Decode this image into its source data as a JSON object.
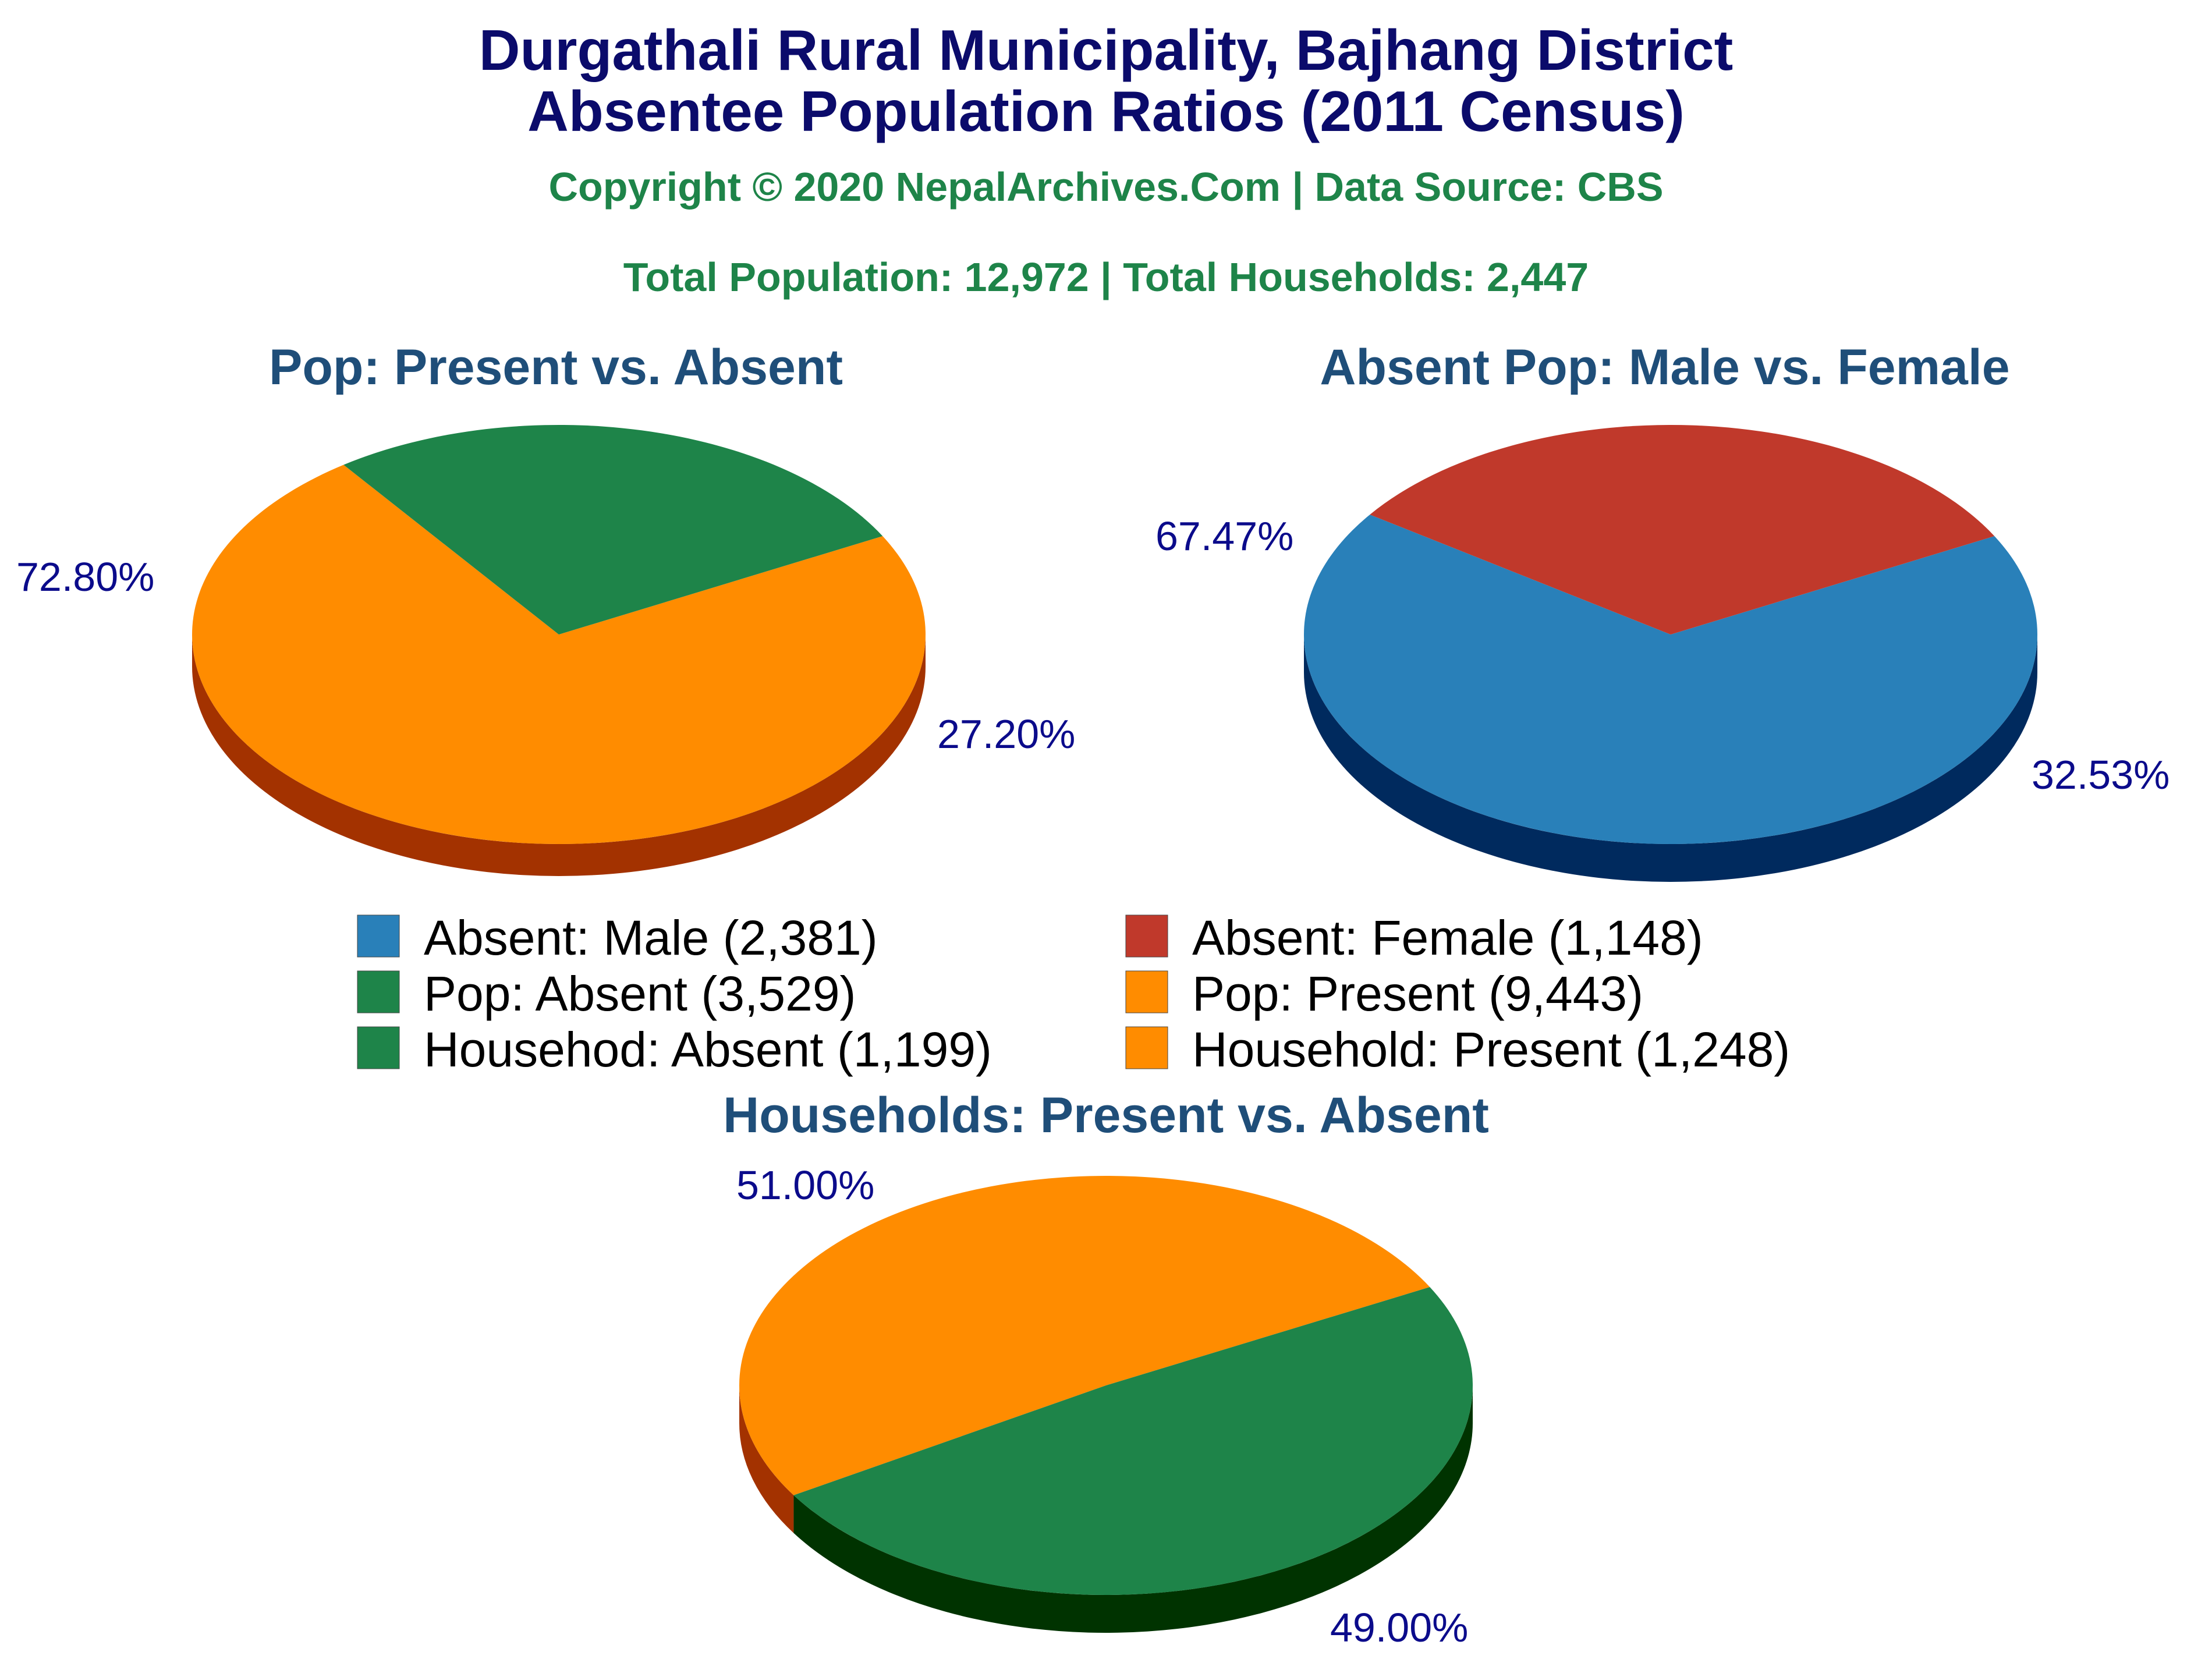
{
  "title_line1": "Durgathali Rural Municipality, Bajhang District",
  "title_line2": "Absentee Population Ratios (2011 Census)",
  "copyright": "Copyright © 2020 NepalArchives.Com | Data Source: CBS",
  "totals": "Total Population: 12,972 | Total Households: 2,447",
  "colors": {
    "present": "#ff8c00",
    "present_side": "#a33200",
    "absent": "#1e8449",
    "absent_side": "#003300",
    "male": "#2980b9",
    "male_side": "#002a5e",
    "female": "#c0392b",
    "female_side": "#600000"
  },
  "chart_data": [
    {
      "type": "pie",
      "title": "Pop: Present vs. Absent",
      "slices": [
        {
          "label": "Pop: Present",
          "value": 9443,
          "percent_label": "72.80%",
          "color_key": "present"
        },
        {
          "label": "Pop: Absent",
          "value": 3529,
          "percent_label": "27.20%",
          "color_key": "absent"
        }
      ]
    },
    {
      "type": "pie",
      "title": "Absent Pop: Male vs. Female",
      "slices": [
        {
          "label": "Absent: Male",
          "value": 2381,
          "percent_label": "67.47%",
          "color_key": "male"
        },
        {
          "label": "Absent: Female",
          "value": 1148,
          "percent_label": "32.53%",
          "color_key": "female"
        }
      ]
    },
    {
      "type": "pie",
      "title": "Households: Present vs. Absent",
      "slices": [
        {
          "label": "Household: Present",
          "value": 1248,
          "percent_label": "51.00%",
          "color_key": "present"
        },
        {
          "label": "Household: Absent",
          "value": 1199,
          "percent_label": "49.00%",
          "color_key": "absent"
        }
      ]
    }
  ],
  "legend": [
    {
      "label": "Absent: Male (2,381)",
      "color_key": "male"
    },
    {
      "label": "Absent: Female (1,148)",
      "color_key": "female"
    },
    {
      "label": "Pop: Absent (3,529)",
      "color_key": "absent"
    },
    {
      "label": "Pop: Present (9,443)",
      "color_key": "present"
    },
    {
      "label": "Househod: Absent (1,199)",
      "color_key": "absent"
    },
    {
      "label": "Household: Present (1,248)",
      "color_key": "present"
    }
  ]
}
